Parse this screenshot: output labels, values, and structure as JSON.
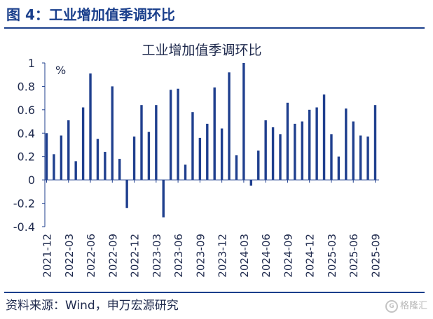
{
  "header": {
    "figure_title": "图 4：工业增加值季调环比"
  },
  "footer": {
    "source": "资料来源：Wind，申万宏源研究",
    "watermark": "格隆汇"
  },
  "colors": {
    "bar": "#1f3f8e",
    "title": "#1a3f8c",
    "rule": "#1a3f8c"
  },
  "chart_data": {
    "type": "bar",
    "title": "工业增加值季调环比",
    "unit": "%",
    "ylim": [
      -0.4,
      1.0
    ],
    "yticks": [
      -0.4,
      -0.2,
      0,
      0.2,
      0.4,
      0.6,
      0.8,
      1
    ],
    "ytick_labels": [
      "-0.4",
      "-0.2",
      "0",
      "0.2",
      "0.4",
      "0.6",
      "0.8",
      "1"
    ],
    "grid": false,
    "categories": [
      "2021-12",
      "2022-01",
      "2022-02",
      "2022-03",
      "2022-04",
      "2022-05",
      "2022-06",
      "2022-07",
      "2022-08",
      "2022-09",
      "2022-10",
      "2022-11",
      "2022-12",
      "2023-01",
      "2023-02",
      "2023-03",
      "2023-04",
      "2023-05",
      "2023-06",
      "2023-07",
      "2023-08",
      "2023-09",
      "2023-10",
      "2023-11",
      "2023-12",
      "2024-01",
      "2024-02",
      "2024-03",
      "2024-04",
      "2024-05",
      "2024-06",
      "2024-07",
      "2024-08",
      "2024-09",
      "2024-10",
      "2024-11",
      "2024-12",
      "2025-01",
      "2025-02",
      "2025-03",
      "2025-04",
      "2025-05",
      "2025-06",
      "2025-07",
      "2025-08",
      "2025-09"
    ],
    "xtick_labels": [
      "2021-12",
      "2022-03",
      "2022-06",
      "2022-09",
      "2022-12",
      "2023-03",
      "2023-06",
      "2023-09",
      "2023-12",
      "2024-03",
      "2024-06",
      "2024-09",
      "2024-12",
      "2025-03",
      "2025-06",
      "2025-09"
    ],
    "values": [
      0.4,
      0.22,
      0.38,
      0.51,
      0.16,
      0.62,
      0.91,
      0.35,
      0.24,
      0.8,
      0.18,
      -0.24,
      0.37,
      0.64,
      0.41,
      0.64,
      -0.32,
      0.77,
      0.78,
      0.13,
      0.58,
      0.36,
      0.48,
      0.79,
      0.44,
      0.92,
      0.21,
      1.0,
      -0.05,
      0.25,
      0.51,
      0.45,
      0.39,
      0.66,
      0.48,
      0.5,
      0.6,
      0.62,
      0.73,
      0.39,
      0.2,
      0.61,
      0.5,
      0.38,
      0.37,
      0.64
    ]
  }
}
